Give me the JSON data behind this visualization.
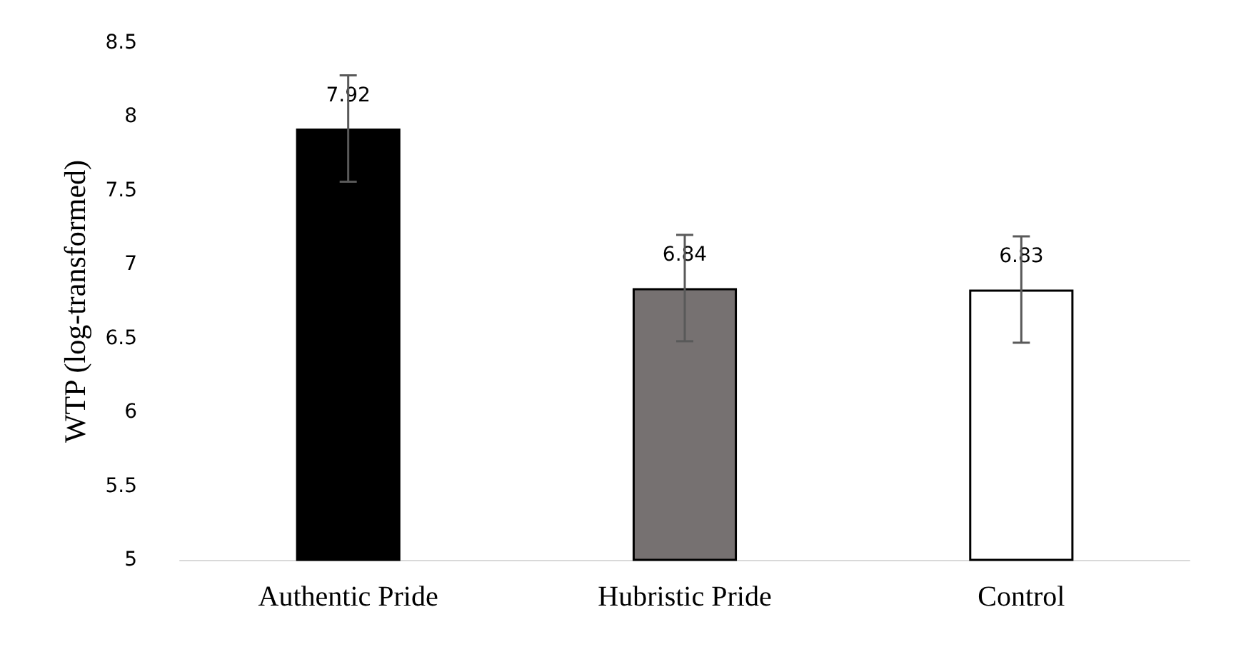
{
  "chart_data": {
    "type": "bar",
    "ylabel": "WTP (log-transformed)",
    "categories": [
      "Authentic Pride",
      "Hubristic Pride",
      "Control"
    ],
    "values": [
      7.92,
      6.84,
      6.83
    ],
    "colors": [
      "#000000",
      "#767171",
      "#ffffff"
    ],
    "errors": [
      0.36,
      0.36,
      0.36
    ],
    "data_labels": true,
    "ylim": [
      5,
      8.5
    ],
    "yticks": [
      5,
      5.5,
      6,
      6.5,
      7,
      7.5,
      8,
      8.5
    ],
    "grid": false
  }
}
